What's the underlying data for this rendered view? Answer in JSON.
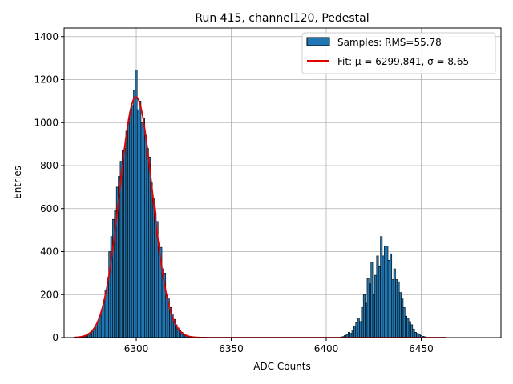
{
  "chart_data": {
    "type": "bar",
    "title": "Run 415, channel120, Pedestal",
    "xlabel": "ADC Counts",
    "ylabel": "Entries",
    "xlim": [
      6262,
      6492
    ],
    "ylim": [
      0,
      1440
    ],
    "xticks": [
      6300,
      6350,
      6400,
      6450
    ],
    "yticks": [
      0,
      200,
      400,
      600,
      800,
      1000,
      1200,
      1400
    ],
    "grid": true,
    "legend_position": "top-right",
    "colors": {
      "bars": "#1f77b4",
      "bar_edge": "#000000",
      "fit": "#e00000",
      "grid": "#b0b0b0"
    },
    "legend": {
      "samples_label": "Samples: RMS=55.78",
      "fit_label": "Fit: μ = 6299.841, σ = 8.65"
    },
    "histogram": {
      "bin_width": 1,
      "bins": [
        [
          6272,
          3
        ],
        [
          6273,
          5
        ],
        [
          6274,
          8
        ],
        [
          6275,
          12
        ],
        [
          6276,
          20
        ],
        [
          6277,
          28
        ],
        [
          6278,
          40
        ],
        [
          6279,
          55
        ],
        [
          6280,
          75
        ],
        [
          6281,
          100
        ],
        [
          6282,
          130
        ],
        [
          6283,
          175
        ],
        [
          6284,
          220
        ],
        [
          6285,
          280
        ],
        [
          6286,
          400
        ],
        [
          6287,
          470
        ],
        [
          6288,
          550
        ],
        [
          6289,
          590
        ],
        [
          6290,
          700
        ],
        [
          6291,
          750
        ],
        [
          6292,
          820
        ],
        [
          6293,
          870
        ],
        [
          6294,
          880
        ],
        [
          6295,
          960
        ],
        [
          6296,
          1000
        ],
        [
          6297,
          1050
        ],
        [
          6298,
          1080
        ],
        [
          6299,
          1150
        ],
        [
          6300,
          1245
        ],
        [
          6301,
          1060
        ],
        [
          6302,
          1100
        ],
        [
          6303,
          1000
        ],
        [
          6304,
          1020
        ],
        [
          6305,
          940
        ],
        [
          6306,
          880
        ],
        [
          6307,
          840
        ],
        [
          6308,
          720
        ],
        [
          6309,
          650
        ],
        [
          6310,
          580
        ],
        [
          6311,
          540
        ],
        [
          6312,
          440
        ],
        [
          6313,
          420
        ],
        [
          6314,
          320
        ],
        [
          6315,
          300
        ],
        [
          6316,
          200
        ],
        [
          6317,
          180
        ],
        [
          6318,
          140
        ],
        [
          6319,
          110
        ],
        [
          6320,
          85
        ],
        [
          6321,
          60
        ],
        [
          6322,
          45
        ],
        [
          6323,
          35
        ],
        [
          6324,
          25
        ],
        [
          6325,
          15
        ],
        [
          6326,
          10
        ],
        [
          6327,
          6
        ],
        [
          6328,
          4
        ],
        [
          6329,
          3
        ],
        [
          6408,
          3
        ],
        [
          6409,
          5
        ],
        [
          6410,
          10
        ],
        [
          6411,
          15
        ],
        [
          6412,
          25
        ],
        [
          6413,
          20
        ],
        [
          6414,
          35
        ],
        [
          6415,
          55
        ],
        [
          6416,
          70
        ],
        [
          6417,
          90
        ],
        [
          6418,
          75
        ],
        [
          6419,
          140
        ],
        [
          6420,
          200
        ],
        [
          6421,
          160
        ],
        [
          6422,
          275
        ],
        [
          6423,
          250
        ],
        [
          6424,
          350
        ],
        [
          6425,
          200
        ],
        [
          6426,
          290
        ],
        [
          6427,
          380
        ],
        [
          6428,
          330
        ],
        [
          6429,
          470
        ],
        [
          6430,
          380
        ],
        [
          6431,
          425
        ],
        [
          6432,
          425
        ],
        [
          6433,
          360
        ],
        [
          6434,
          390
        ],
        [
          6435,
          270
        ],
        [
          6436,
          320
        ],
        [
          6437,
          270
        ],
        [
          6438,
          260
        ],
        [
          6439,
          210
        ],
        [
          6440,
          180
        ],
        [
          6441,
          140
        ],
        [
          6442,
          100
        ],
        [
          6443,
          90
        ],
        [
          6444,
          75
        ],
        [
          6445,
          60
        ],
        [
          6446,
          40
        ],
        [
          6447,
          25
        ],
        [
          6448,
          20
        ],
        [
          6449,
          15
        ],
        [
          6450,
          10
        ],
        [
          6451,
          6
        ],
        [
          6452,
          4
        ]
      ]
    },
    "fit_gaussians": [
      {
        "amplitude": 1120,
        "mu": 6299.841,
        "sigma": 8.65,
        "x_range": [
          6267,
          6350
        ]
      },
      {
        "amplitude": 0,
        "mu": 6430,
        "sigma": 8.65,
        "x_range": [
          6350,
          6463
        ]
      }
    ]
  }
}
